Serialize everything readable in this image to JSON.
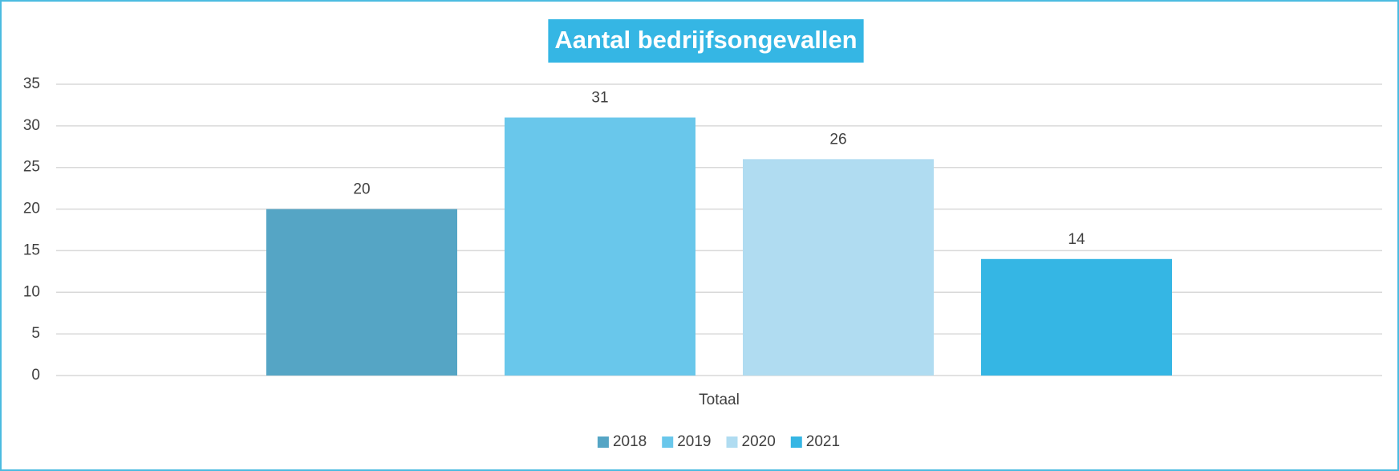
{
  "chart_data": {
    "type": "bar",
    "title": "Aantal bedrijfsongevallen",
    "categories": [
      "Totaal"
    ],
    "series": [
      {
        "name": "2018",
        "color": "#55a5c5",
        "values": [
          20
        ]
      },
      {
        "name": "2019",
        "color": "#69c7eb",
        "values": [
          31
        ]
      },
      {
        "name": "2020",
        "color": "#b0dcf1",
        "values": [
          26
        ]
      },
      {
        "name": "2021",
        "color": "#35b6e4",
        "values": [
          14
        ]
      }
    ],
    "ylim": [
      0,
      35
    ],
    "yticks": [
      0,
      5,
      10,
      15,
      20,
      25,
      30,
      35
    ],
    "grid": true,
    "legend": "bottom"
  }
}
